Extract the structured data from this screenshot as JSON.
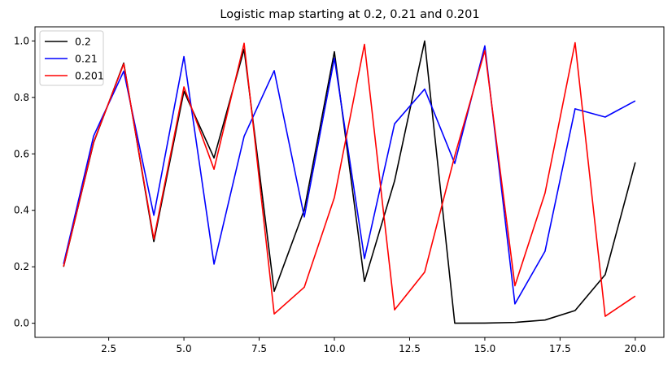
{
  "chart_data": {
    "type": "line",
    "title": "Logistic map starting at 0.2, 0.21 and 0.201",
    "xlabel": "",
    "ylabel": "",
    "xlim": [
      0.05,
      20.95
    ],
    "ylim": [
      -0.05,
      1.05
    ],
    "xticks": [
      2.5,
      5.0,
      7.5,
      10.0,
      12.5,
      15.0,
      17.5,
      20.0
    ],
    "xtick_labels": [
      "2.5",
      "5.0",
      "7.5",
      "10.0",
      "12.5",
      "15.0",
      "17.5",
      "20.0"
    ],
    "yticks": [
      0.0,
      0.2,
      0.4,
      0.6,
      0.8,
      1.0
    ],
    "ytick_labels": [
      "0.0",
      "0.2",
      "0.4",
      "0.6",
      "0.8",
      "1.0"
    ],
    "grid": false,
    "legend_position": "upper-left",
    "x": [
      1,
      2,
      3,
      4,
      5,
      6,
      7,
      8,
      9,
      10,
      11,
      12,
      13,
      14,
      15,
      16,
      17,
      18,
      19,
      20
    ],
    "series": [
      {
        "name": "0.2",
        "color": "#000000",
        "values": [
          0.2,
          0.64,
          0.9216,
          0.289,
          0.8219,
          0.5854,
          0.9708,
          0.1133,
          0.402,
          0.9616,
          0.1478,
          0.5039,
          0.9999,
          0.0002,
          0.0007,
          0.0029,
          0.0114,
          0.045,
          0.1721,
          0.57
        ]
      },
      {
        "name": "0.21",
        "color": "#0000ff",
        "values": [
          0.21,
          0.6636,
          0.893,
          0.3823,
          0.9446,
          0.2094,
          0.6622,
          0.8948,
          0.3765,
          0.939,
          0.2291,
          0.7065,
          0.8294,
          0.566,
          0.9826,
          0.0684,
          0.2548,
          0.7596,
          0.7304,
          0.7877
        ]
      },
      {
        "name": "0.201",
        "color": "#ff0000",
        "values": [
          0.201,
          0.6424,
          0.9189,
          0.2982,
          0.8371,
          0.5455,
          0.9917,
          0.033,
          0.1276,
          0.4452,
          0.988,
          0.0475,
          0.1809,
          0.5927,
          0.9656,
          0.1328,
          0.4607,
          0.9938,
          0.0247,
          0.0963
        ]
      }
    ]
  }
}
